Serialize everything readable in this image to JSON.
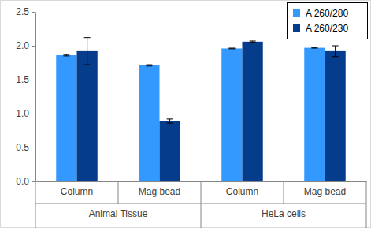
{
  "chart_data": {
    "type": "bar",
    "categories": [
      "Column",
      "Mag bead",
      "Column",
      "Mag bead"
    ],
    "groups": [
      {
        "name": "Animal Tissue",
        "size": 2
      },
      {
        "name": "HeLa cells",
        "size": 2
      }
    ],
    "series": [
      {
        "name": "A 260/280",
        "color": "#3399ff",
        "values": [
          1.86,
          1.71,
          1.96,
          1.97
        ],
        "errors": [
          0.01,
          0.01,
          0.005,
          0.005
        ]
      },
      {
        "name": "A 260/230",
        "color": "#063c8c",
        "values": [
          1.92,
          0.89,
          2.06,
          1.92
        ],
        "errors": [
          0.2,
          0.03,
          0.01,
          0.08
        ]
      }
    ],
    "ylim": [
      0,
      2.5
    ],
    "yticks": [
      {
        "value": 0,
        "label": "0.0"
      },
      {
        "value": 0.5,
        "label": "0.5"
      },
      {
        "value": 1,
        "label": "1.0"
      },
      {
        "value": 1.5,
        "label": "1.5"
      },
      {
        "value": 2,
        "label": "2.0"
      },
      {
        "value": 2.5,
        "label": "2.5"
      }
    ],
    "grid": false,
    "legend": "top-right"
  }
}
